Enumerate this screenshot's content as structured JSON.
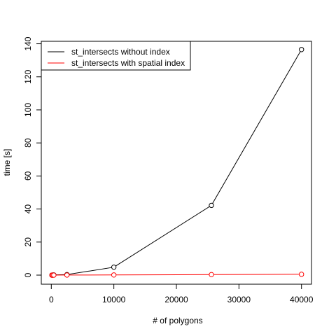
{
  "chart_data": {
    "type": "line",
    "title": "",
    "xlabel": "# of polygons",
    "ylabel": "time [s]",
    "xlim": [
      -1600,
      41600
    ],
    "ylim": [
      -5.5,
      141.5
    ],
    "xticks": [
      0,
      10000,
      20000,
      30000,
      40000
    ],
    "yticks": [
      0,
      20,
      40,
      60,
      80,
      100,
      120,
      140
    ],
    "grid": false,
    "legend_position": "top-left",
    "series": [
      {
        "name": "st_intersects without index",
        "color": "#000000",
        "marker": "open-circle",
        "x": [
          100,
          225,
          400,
          2500,
          10000,
          25600,
          40000
        ],
        "y": [
          0.0,
          0.05,
          0.1,
          0.3,
          4.8,
          42.2,
          136.5
        ]
      },
      {
        "name": "st_intersects with spatial index",
        "color": "#ff0000",
        "marker": "open-circle",
        "x": [
          100,
          225,
          400,
          2500,
          10000,
          25600,
          40000
        ],
        "y": [
          0.0,
          0.0,
          0.0,
          0.05,
          0.1,
          0.3,
          0.5
        ]
      }
    ]
  }
}
